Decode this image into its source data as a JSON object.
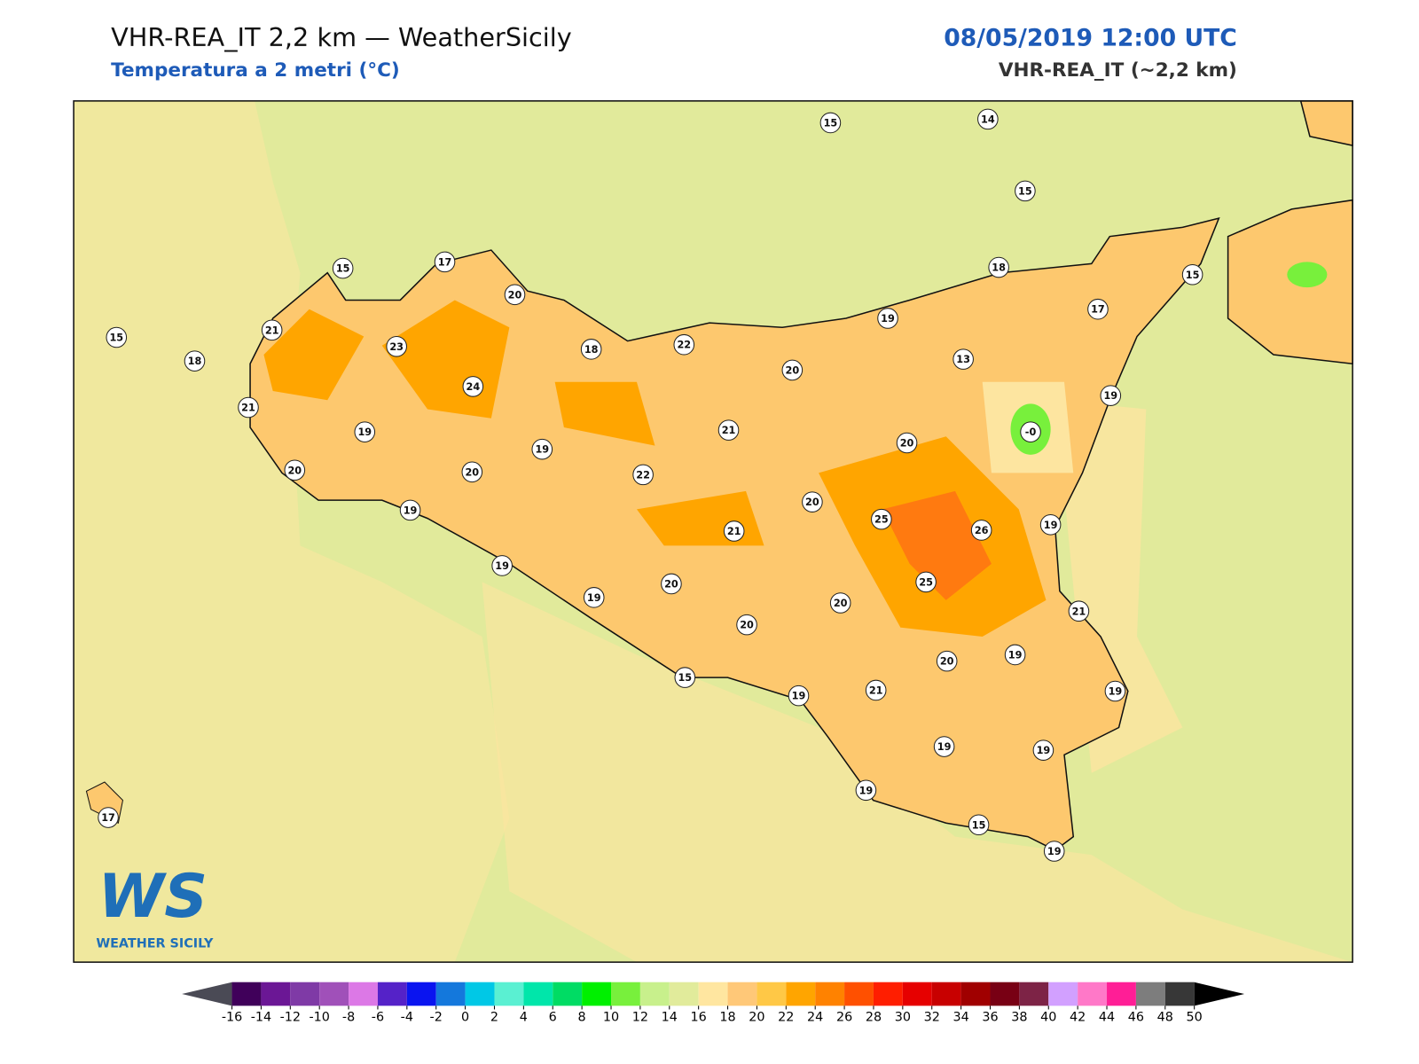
{
  "header": {
    "title": "VHR-REA_IT 2,2 km — WeatherSicily",
    "subtitle": "Temperatura a 2 metri (°C)",
    "date": "08/05/2019 12:00 UTC",
    "model": "VHR-REA_IT (~2,2 km)"
  },
  "logo": {
    "mark": "WS",
    "text": "WEATHER SICILY"
  },
  "stations": [
    15,
    14,
    15,
    15,
    17,
    20,
    18,
    15,
    17,
    19,
    21,
    23,
    18,
    22,
    20,
    13,
    15,
    18,
    24,
    19,
    21,
    19,
    21,
    {
      "value": 0,
      "label": "-0"
    },
    20,
    19,
    20,
    20,
    22,
    20,
    19,
    25,
    26,
    21,
    19,
    19,
    25,
    20,
    19,
    20,
    21,
    20,
    19,
    20,
    15,
    19,
    21,
    19,
    19,
    19,
    19,
    17,
    15,
    19
  ],
  "colorbar": {
    "ticks": [
      -16,
      -14,
      -12,
      -10,
      -8,
      -6,
      -4,
      -2,
      0,
      2,
      4,
      6,
      8,
      10,
      12,
      14,
      16,
      18,
      20,
      22,
      24,
      26,
      28,
      30,
      32,
      34,
      36,
      38,
      40,
      42,
      44,
      46,
      48,
      50
    ],
    "colors": [
      "#40005a",
      "#6b1795",
      "#7f3aa6",
      "#a050b9",
      "#dc78e6",
      "#5522c8",
      "#0a14f0",
      "#1478dc",
      "#00c8e6",
      "#5af0d2",
      "#00e6aa",
      "#00dc64",
      "#00f000",
      "#78f03c",
      "#c8f08c",
      "#e1eb9b",
      "#ffe6a0",
      "#ffc878",
      "#ffc846",
      "#ffa500",
      "#ff8200",
      "#ff5000",
      "#ff1e00",
      "#e60000",
      "#c80000",
      "#a00000",
      "#780014",
      "#7d2346",
      "#d2a0ff",
      "#ff78c8",
      "#ff1e96",
      "#7d7d7d",
      "#373737"
    ]
  }
}
